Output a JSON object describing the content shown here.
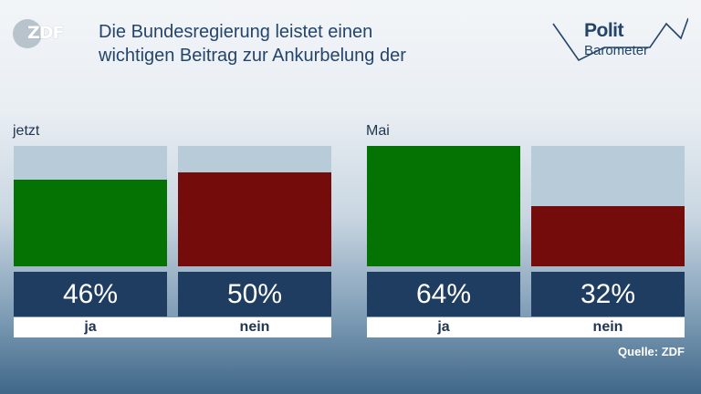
{
  "brand": {
    "zdf_logo_text": "ZDF",
    "politbarometer_line1": "Polit",
    "politbarometer_line2": "Barometer"
  },
  "title": "Die Bundesregierung leistet einen\nwichtigen Beitrag zur Ankurbelung der",
  "source": "Quelle: ZDF",
  "colors": {
    "ja": "#047304",
    "nein": "#750c0c",
    "track": "#b8cbd9",
    "value_box": "#1f3d61",
    "text": "#24456b"
  },
  "chart_data": [
    {
      "type": "bar",
      "group": "jetzt",
      "categories": [
        "ja",
        "nein"
      ],
      "values": [
        46,
        50
      ],
      "value_labels": [
        "46%",
        "50%"
      ],
      "ylim": [
        0,
        64
      ]
    },
    {
      "type": "bar",
      "group": "Mai",
      "categories": [
        "ja",
        "nein"
      ],
      "values": [
        64,
        32
      ],
      "value_labels": [
        "64%",
        "32%"
      ],
      "ylim": [
        0,
        64
      ]
    }
  ]
}
